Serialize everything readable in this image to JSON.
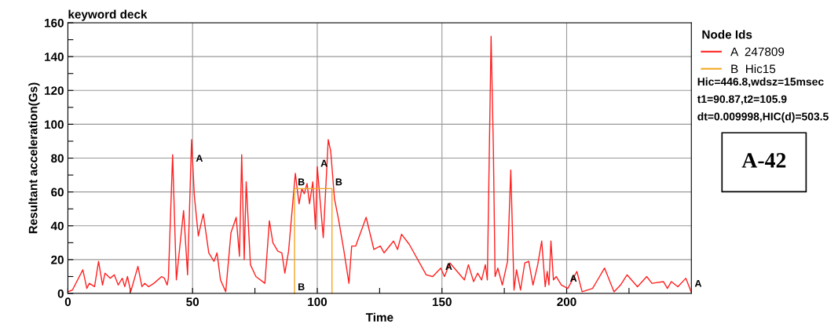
{
  "chart_data": {
    "type": "line",
    "title": "keyword deck",
    "xlabel": "Time",
    "ylabel": "Resultant acceleration(Gs)",
    "legend_title": "Node Ids",
    "legend": "top right",
    "grid": true,
    "marker": "none",
    "line_style": "solid",
    "xlim": [
      0,
      250
    ],
    "ylim": [
      0,
      160
    ],
    "xticks": [
      0,
      {
        "value": 25,
        "label": null
      },
      50,
      {
        "value": 75,
        "label": null
      },
      100,
      {
        "value": 125,
        "label": null
      },
      150,
      {
        "value": 175,
        "label": null
      },
      200,
      {
        "value": 225,
        "label": null
      }
    ],
    "yticks": [
      0,
      {
        "value": 10,
        "label": null
      },
      20,
      {
        "value": 30,
        "label": null
      },
      40,
      {
        "value": 50,
        "label": null
      },
      60,
      {
        "value": 70,
        "label": null
      },
      80,
      {
        "value": 90,
        "label": null
      },
      100,
      {
        "value": 110,
        "label": null
      },
      120,
      {
        "value": 130,
        "label": null
      },
      140,
      {
        "value": 150,
        "label": null
      },
      160
    ],
    "series": [
      {
        "name": "A  247809",
        "color": "#ff2020",
        "x": [
          0,
          1.8,
          6,
          7.6,
          8.6,
          10.7,
          12.3,
          13.9,
          14.9,
          17,
          18.6,
          20.2,
          21.8,
          22.8,
          23.9,
          25.2,
          28.1,
          29.7,
          30.8,
          32.4,
          34.5,
          37.6,
          38.7,
          39.8,
          40.3,
          42,
          43.5,
          46.4,
          48,
          49.6,
          50.7,
          52.3,
          54.3,
          56.5,
          58.6,
          59.8,
          61.2,
          63.3,
          65.4,
          67.5,
          68.8,
          69.7,
          70.7,
          71.5,
          73.2,
          75.4,
          79,
          80.8,
          82.2,
          84.2,
          85.8,
          87,
          88.5,
          91.2,
          92.7,
          93.8,
          94.8,
          95.9,
          96.9,
          98.2,
          99.3,
          100,
          102.4,
          104.4,
          105.4,
          106.9,
          108.5,
          110.6,
          112.7,
          113.8,
          115.4,
          119.6,
          122.7,
          125.3,
          126.8,
          130.6,
          132.2,
          133.8,
          136.9,
          143.7,
          146.3,
          149.5,
          151,
          153.2,
          159,
          160.6,
          162.7,
          164.3,
          165.9,
          167.4,
          168.2,
          169.7,
          170.6,
          171.3,
          172.4,
          174.2,
          176.3,
          177.6,
          178.9,
          179.9,
          181.5,
          183.2,
          184.8,
          186.5,
          188.4,
          190,
          191.4,
          192.2,
          192.9,
          193.7,
          194.7,
          195.8,
          197.9,
          200.5,
          204.1,
          206.2,
          210.4,
          215.2,
          219,
          221.6,
          224.2,
          228.4,
          232.1,
          234.2,
          238.8,
          240.4,
          242,
          244.6,
          247.8,
          249.9
        ],
        "values": [
          1,
          2,
          14,
          3,
          6,
          4,
          19,
          5,
          12,
          9,
          11,
          5,
          9,
          4,
          10,
          1,
          16,
          4,
          6,
          4,
          6,
          10,
          9,
          5,
          9,
          82,
          8,
          49,
          11,
          91,
          58,
          34,
          47,
          24,
          19,
          24,
          8,
          1,
          36,
          45,
          22,
          82,
          20,
          66,
          17,
          10,
          6,
          43,
          30,
          25,
          24,
          12,
          25,
          71,
          53,
          62,
          59,
          65,
          53,
          66,
          38,
          75,
          33,
          91,
          84,
          56,
          44,
          26,
          6,
          28,
          28,
          45,
          26,
          28,
          24,
          31,
          26,
          35,
          29,
          11,
          10,
          15,
          10,
          18,
          8,
          17,
          7,
          12,
          8,
          17,
          8,
          152,
          87,
          10,
          15,
          5,
          19,
          73,
          2,
          14,
          2,
          18,
          19,
          5,
          17,
          31,
          4,
          13,
          5,
          31,
          8,
          10,
          5,
          3,
          13,
          1,
          3,
          15,
          1,
          5,
          11,
          4,
          10,
          6,
          7,
          3,
          7,
          4,
          9,
          1
        ]
      },
      {
        "name": "B  Hic15",
        "color": "#f5a623",
        "x": [
          90.87,
          90.87,
          105.9,
          105.9
        ],
        "values": [
          0,
          62,
          62,
          0
        ]
      }
    ],
    "annotations": [
      {
        "text": "A",
        "x": 50,
        "y": 76
      },
      {
        "text": "A",
        "x": 100,
        "y": 73
      },
      {
        "text": "A",
        "x": 150,
        "y": 12
      },
      {
        "text": "A",
        "x": 200,
        "y": 5
      },
      {
        "text": "A",
        "x": 250,
        "y": 2
      },
      {
        "text": "B",
        "x": 90.87,
        "y": 62
      },
      {
        "text": "B",
        "x": 105.9,
        "y": 62
      },
      {
        "text": "B",
        "x": 90.87,
        "y": 0
      },
      "Hic=446.8,wdsz=15msec",
      "t1=90.87,t2=105.9",
      "dt=0.009998,HIC(d)=503.5",
      "A-42"
    ]
  }
}
